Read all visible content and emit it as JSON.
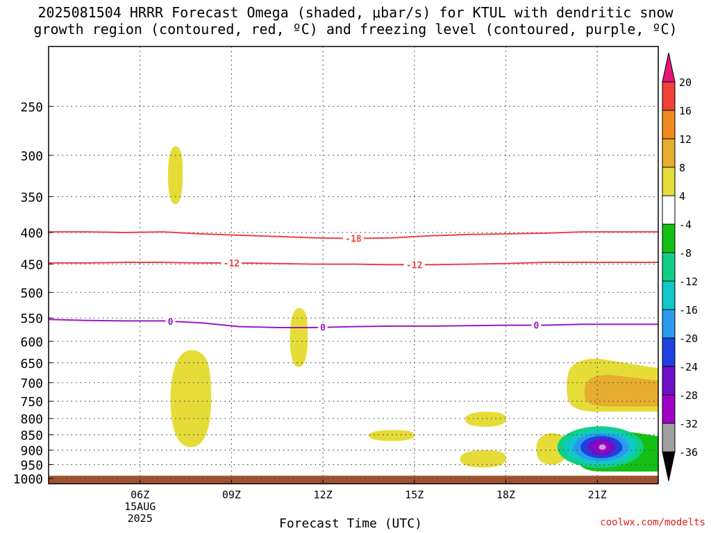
{
  "chart_data": {
    "type": "contour",
    "title": "2025081504 HRRR Forecast Omega (shaded, μbar/s) for KTUL with dendritic snow\ngrowth region (contoured, red, ºC) and freezing level (contoured, purple, ºC)",
    "xlabel": "Forecast Time (UTC)",
    "ylabel": "",
    "credit": "coolwx.com/modelts",
    "x_ticks": [
      "06Z",
      "09Z",
      "12Z",
      "15Z",
      "18Z",
      "21Z"
    ],
    "x_date_label": [
      "15AUG",
      "2025"
    ],
    "y_ticks": [
      250,
      300,
      350,
      400,
      450,
      500,
      550,
      600,
      650,
      700,
      750,
      800,
      850,
      900,
      950,
      1000
    ],
    "ylim": [
      200,
      1020
    ],
    "xlim": [
      "03Z",
      "22:59Z"
    ],
    "grid": true,
    "colorbar": {
      "levels": [
        "20",
        "16",
        "12",
        "8",
        "4",
        "-4",
        "-8",
        "-12",
        "-16",
        "-20",
        "-24",
        "-28",
        "-32",
        "-36"
      ],
      "colors": [
        "#e8157a",
        "#f0403a",
        "#f08a1e",
        "#e6ad2e",
        "#e6dc38",
        "#ffffff",
        "#15c015",
        "#10d088",
        "#10c8c8",
        "#2a9af0",
        "#2040e0",
        "#7010c8",
        "#a000c8",
        "#a0a0a0",
        "#000000"
      ]
    },
    "contours": [
      {
        "name": "-18",
        "color": "#f04040",
        "labels": [
          {
            "x": "13:00Z",
            "value": "-18"
          }
        ],
        "pressure": [
          399,
          399,
          400,
          399,
          402,
          404,
          406,
          408,
          409,
          408,
          405,
          403,
          402,
          401,
          399,
          399,
          399
        ]
      },
      {
        "name": "-12",
        "color": "#f04040",
        "labels": [
          {
            "x": "09:00Z",
            "value": "-12"
          },
          {
            "x": "15:00Z",
            "value": "-12"
          }
        ],
        "pressure": [
          448,
          448,
          447,
          447,
          448,
          448,
          449,
          450,
          450,
          451,
          451,
          450,
          449,
          447,
          447,
          447,
          447
        ]
      },
      {
        "name": "0",
        "color": "#9b16c8",
        "labels": [
          {
            "x": "07:00Z",
            "value": "0"
          },
          {
            "x": "12:00Z",
            "value": "0"
          },
          {
            "x": "19:00Z",
            "value": "0"
          }
        ],
        "pressure": [
          553,
          555,
          556,
          556,
          560,
          568,
          570,
          570,
          568,
          567,
          567,
          566,
          565,
          565,
          563,
          563,
          563
        ]
      }
    ],
    "shaded_regions": [
      {
        "value": "4 to 8",
        "color": "#e6dc38",
        "x": [
          "06:55Z",
          "07:24Z"
        ],
        "pressure": [
          290,
          360
        ]
      },
      {
        "value": "4 to 8",
        "color": "#e6dc38",
        "x": [
          "07:00Z",
          "08:20Z"
        ],
        "pressure": [
          620,
          890
        ]
      },
      {
        "value": "4 to 8",
        "color": "#e6dc38",
        "x": [
          "10:55Z",
          "11:30Z"
        ],
        "pressure": [
          530,
          660
        ]
      },
      {
        "value": "4 to 8",
        "color": "#e6dc38",
        "x": [
          "13:30Z",
          "15:00Z"
        ],
        "pressure": [
          835,
          870
        ]
      },
      {
        "value": "4 to 8",
        "color": "#e6dc38",
        "x": [
          "16:40Z",
          "18:00Z"
        ],
        "pressure": [
          780,
          825
        ]
      },
      {
        "value": "4 to 8",
        "color": "#e6dc38",
        "x": [
          "16:30Z",
          "18:00Z"
        ],
        "pressure": [
          900,
          960
        ]
      },
      {
        "value": "4 to 8",
        "color": "#e6dc38",
        "x": [
          "19:00Z",
          "20:00Z"
        ],
        "pressure": [
          845,
          950
        ]
      },
      {
        "value": "4 to 8",
        "color": "#e6dc38",
        "x": [
          "20:00Z",
          "22:59Z"
        ],
        "pressure": [
          640,
          780
        ]
      },
      {
        "value": "8 to 12",
        "color": "#e6ad2e",
        "x": [
          "20:35Z",
          "22:59Z"
        ],
        "pressure": [
          680,
          765
        ]
      },
      {
        "value": "-4 to -16",
        "color": "#15c015",
        "x": [
          "20:20Z",
          "22:59Z"
        ],
        "pressure": [
          830,
          975
        ]
      },
      {
        "value": "-24 to -32",
        "color": "#7010c8",
        "x": [
          "20:55Z",
          "21:30Z"
        ],
        "pressure": [
          860,
          920
        ]
      }
    ],
    "terrain": {
      "color": "#a0522d",
      "pressure_top": 990
    }
  }
}
